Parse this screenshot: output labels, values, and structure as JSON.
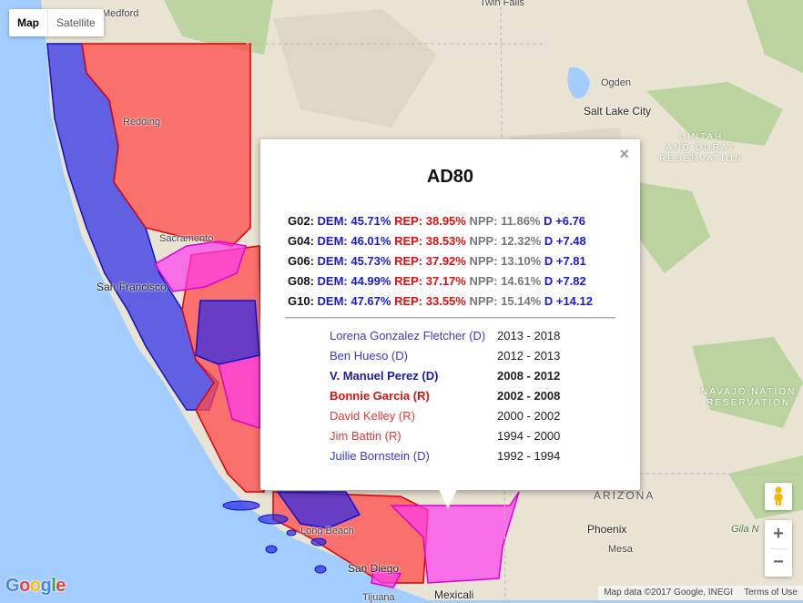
{
  "map": {
    "type_control": {
      "map_label": "Map",
      "satellite_label": "Satellite",
      "active": "Map"
    },
    "places": {
      "medford": "Medford",
      "twin_falls": "Twin Falls",
      "ogden": "Ogden",
      "salt_lake_city": "Salt Lake City",
      "redding": "Redding",
      "sacramento": "Sacramento",
      "san_francisco": "San Francisco",
      "long_beach": "Long Beach",
      "san_diego": "San Diego",
      "tijuana": "Tijuana",
      "mexicali": "Mexicali",
      "phoenix": "Phoenix",
      "mesa": "Mesa",
      "arizona": "ARIZONA",
      "gila": "Gila N",
      "uintah_line1": "UINTAH",
      "uintah_line2": "AND OURAY",
      "uintah_line3": "RESERVATION",
      "navajo_line1": "NAVAJO NATION",
      "navajo_line2": "RESERVATION"
    },
    "zoom": {
      "in": "+",
      "out": "−"
    },
    "logo": [
      "G",
      "o",
      "o",
      "g",
      "l",
      "e"
    ],
    "attribution": {
      "map_data": "Map data ©2017 Google, INEGI",
      "terms": "Terms of Use"
    },
    "colors": {
      "dem": "#1a1ad6",
      "rep": "#e01010",
      "npp": "#777777",
      "district_red": "#ff4a4a",
      "district_blue": "#2828e8",
      "district_pink": "#ff3cf0"
    }
  },
  "popup": {
    "title": "AD80",
    "close": "×",
    "results": [
      {
        "code": "G02:",
        "dem": "DEM: 45.71%",
        "rep": "REP: 38.95%",
        "npp": "NPP: 11.86%",
        "margin": "D +6.76"
      },
      {
        "code": "G04:",
        "dem": "DEM: 46.01%",
        "rep": "REP: 38.53%",
        "npp": "NPP: 12.32%",
        "margin": "D +7.48"
      },
      {
        "code": "G06:",
        "dem": "DEM: 45.73%",
        "rep": "REP: 37.92%",
        "npp": "NPP: 13.10%",
        "margin": "D +7.81"
      },
      {
        "code": "G08:",
        "dem": "DEM: 44.99%",
        "rep": "REP: 37.17%",
        "npp": "NPP: 14.61%",
        "margin": "D +7.82"
      },
      {
        "code": "G10:",
        "dem": "DEM: 47.67%",
        "rep": "REP: 33.55%",
        "npp": "NPP: 15.14%",
        "margin": "D +14.12"
      }
    ],
    "holders": [
      {
        "name": "Lorena Gonzalez Fletcher (D)",
        "years": "2013 - 2018",
        "party": "D",
        "bold": false
      },
      {
        "name": "Ben Hueso (D)",
        "years": "2012 - 2013",
        "party": "D",
        "bold": false
      },
      {
        "name": "V. Manuel Perez (D)",
        "years": "2008 - 2012",
        "party": "D",
        "bold": true
      },
      {
        "name": "Bonnie Garcia (R)",
        "years": "2002 - 2008",
        "party": "R",
        "bold": true
      },
      {
        "name": "David Kelley (R)",
        "years": "2000 - 2002",
        "party": "R",
        "bold": false
      },
      {
        "name": "Jim Battin (R)",
        "years": "1994 - 2000",
        "party": "R",
        "bold": false
      },
      {
        "name": "Juilie Bornstein (D)",
        "years": "1992 - 1994",
        "party": "D",
        "bold": false
      }
    ]
  }
}
